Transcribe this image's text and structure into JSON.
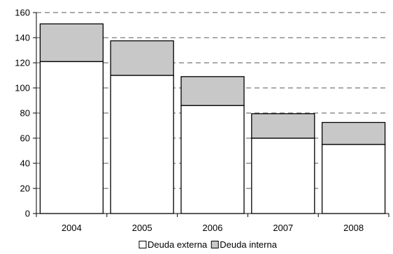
{
  "chart_data": {
    "type": "bar",
    "stacked": true,
    "title": "",
    "xlabel": "",
    "ylabel": "",
    "categories": [
      "2004",
      "2005",
      "2006",
      "2007",
      "2008"
    ],
    "series": [
      {
        "name": "Deuda externa",
        "values": [
          121,
          110,
          86,
          60,
          55
        ],
        "color": "#ffffff"
      },
      {
        "name": "Deuda interna",
        "values": [
          30,
          27.5,
          23,
          19.5,
          17.5
        ],
        "color": "#c8c8c8"
      }
    ],
    "ylim": [
      0,
      160
    ],
    "yticks": [
      "0",
      "20",
      "40",
      "60",
      "80",
      "100",
      "120",
      "140",
      "160"
    ],
    "grid": "horizontal-dashed",
    "legend_position": "bottom"
  }
}
